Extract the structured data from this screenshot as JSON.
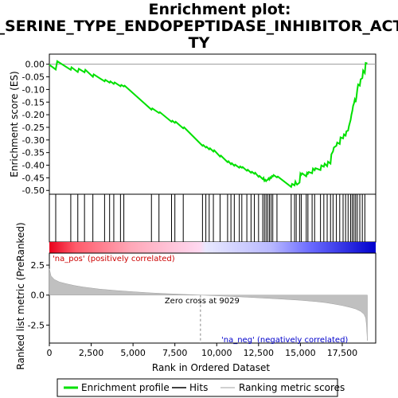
{
  "chart_data": {
    "type": "line",
    "title_lines": [
      "Enrichment plot:",
      "GO_SERINE_TYPE_ENDOPEPTIDASE_INHIBITOR_ACTIVI",
      "TY"
    ],
    "top_panel": {
      "ylabel": "Enrichment score (ES)",
      "ylim": [
        -0.515,
        0.04
      ],
      "yticks": [
        0.0,
        -0.05,
        -0.1,
        -0.15,
        -0.2,
        -0.25,
        -0.3,
        -0.35,
        -0.4,
        -0.45,
        -0.5
      ],
      "ytick_labels": [
        "0.00",
        "-0.05",
        "-0.10",
        "-0.15",
        "-0.20",
        "-0.25",
        "-0.30",
        "-0.35",
        "-0.40",
        "-0.45",
        "-0.50"
      ],
      "series": [
        {
          "name": "Enrichment profile",
          "color": "#00e000",
          "x": [
            0,
            380,
            470,
            1280,
            1320,
            1700,
            1760,
            2100,
            2150,
            2600,
            2650,
            3300,
            3350,
            3600,
            3650,
            3850,
            3900,
            4250,
            4300,
            4450,
            4500,
            6100,
            6150,
            6550,
            6600,
            7300,
            7350,
            7500,
            7550,
            8000,
            8050,
            9150,
            9200,
            9350,
            9400,
            9550,
            9600,
            9800,
            9850,
            10200,
            10250,
            10650,
            10700,
            10850,
            10900,
            11050,
            11100,
            11350,
            11400,
            11500,
            11550,
            11800,
            11850,
            12050,
            12100,
            12250,
            12300,
            12500,
            12550,
            12750,
            12800,
            12850,
            12900,
            12950,
            13000,
            13050,
            13100,
            13150,
            13200,
            13250,
            13300,
            13350,
            13400,
            13600,
            13650,
            14450,
            14500,
            14650,
            14700,
            14750,
            14800,
            14950,
            15000,
            15050,
            15100,
            15350,
            15400,
            15450,
            15500,
            15700,
            15750,
            15850,
            15900,
            16200,
            16250,
            16400,
            16450,
            16600,
            16650,
            16800,
            16850,
            16950,
            17000,
            17150,
            17200,
            17350,
            17400,
            17550,
            17600,
            17700,
            17750,
            17850,
            17900,
            18000,
            18050,
            18100,
            18150,
            18200,
            18250,
            18300,
            18350,
            18400,
            18450,
            18550,
            18600,
            18700,
            18750,
            18850,
            18900,
            19000
          ],
          "y": [
            -0.002,
            -0.021,
            0.012,
            -0.022,
            -0.012,
            -0.031,
            -0.018,
            -0.032,
            -0.022,
            -0.05,
            -0.04,
            -0.068,
            -0.062,
            -0.073,
            -0.068,
            -0.078,
            -0.072,
            -0.087,
            -0.082,
            -0.088,
            -0.085,
            -0.18,
            -0.175,
            -0.193,
            -0.19,
            -0.228,
            -0.224,
            -0.232,
            -0.228,
            -0.254,
            -0.25,
            -0.323,
            -0.32,
            -0.33,
            -0.327,
            -0.337,
            -0.333,
            -0.346,
            -0.341,
            -0.366,
            -0.362,
            -0.388,
            -0.384,
            -0.396,
            -0.392,
            -0.402,
            -0.398,
            -0.41,
            -0.405,
            -0.41,
            -0.407,
            -0.422,
            -0.418,
            -0.43,
            -0.426,
            -0.434,
            -0.43,
            -0.446,
            -0.442,
            -0.455,
            -0.45,
            -0.462,
            -0.458,
            -0.463,
            -0.459,
            -0.458,
            -0.452,
            -0.457,
            -0.448,
            -0.451,
            -0.443,
            -0.445,
            -0.439,
            -0.448,
            -0.445,
            -0.486,
            -0.474,
            -0.48,
            -0.465,
            -0.472,
            -0.477,
            -0.469,
            -0.433,
            -0.438,
            -0.432,
            -0.444,
            -0.43,
            -0.434,
            -0.427,
            -0.432,
            -0.413,
            -0.42,
            -0.412,
            -0.419,
            -0.401,
            -0.406,
            -0.394,
            -0.404,
            -0.386,
            -0.394,
            -0.357,
            -0.345,
            -0.33,
            -0.323,
            -0.31,
            -0.316,
            -0.29,
            -0.294,
            -0.278,
            -0.283,
            -0.266,
            -0.263,
            -0.245,
            -0.22,
            -0.2,
            -0.185,
            -0.165,
            -0.155,
            -0.14,
            -0.15,
            -0.13,
            -0.1,
            -0.08,
            -0.085,
            -0.06,
            -0.055,
            -0.025,
            -0.035,
            0.005,
            0.003
          ]
        }
      ]
    },
    "hits_panel": {
      "legend": "Hits",
      "hit_positions": [
        380,
        1280,
        1700,
        2100,
        2600,
        3300,
        3600,
        3850,
        4250,
        4450,
        6100,
        6550,
        7300,
        7500,
        8000,
        9150,
        9350,
        9550,
        9800,
        10200,
        10650,
        10850,
        11050,
        11350,
        11500,
        11800,
        12050,
        12250,
        12500,
        12750,
        12850,
        12950,
        13050,
        13150,
        13250,
        13350,
        13600,
        14450,
        14650,
        14750,
        14950,
        15050,
        15350,
        15450,
        15700,
        15850,
        16200,
        16400,
        16600,
        16800,
        16950,
        17150,
        17350,
        17550,
        17700,
        17850,
        18000,
        18100,
        18200,
        18300,
        18400,
        18550,
        18700,
        18850
      ]
    },
    "bottom_panel": {
      "ylabel": "Ranked list metric (PreRanked)",
      "xlabel": "Rank in Ordered Dataset",
      "xlim": [
        0,
        19500
      ],
      "ylim": [
        -4.0,
        3.5
      ],
      "xticks": [
        0,
        2500,
        5000,
        7500,
        10000,
        12500,
        15000,
        17500
      ],
      "xtick_labels": [
        "0",
        "2,500",
        "5,000",
        "7,500",
        "10,000",
        "12,500",
        "15,000",
        "17,500"
      ],
      "yticks": [
        2.5,
        0.0,
        -2.5
      ],
      "ytick_labels": [
        "2.5",
        "0.0",
        "-2.5"
      ],
      "metric_curve": {
        "name": "Ranking metric scores",
        "x": [
          0,
          100,
          300,
          600,
          1000,
          1500,
          2000,
          3000,
          4000,
          5000,
          6000,
          7000,
          8000,
          9029,
          10000,
          11000,
          12000,
          13000,
          14000,
          15000,
          16000,
          16500,
          17000,
          17500,
          18000,
          18300,
          18600,
          18800,
          18900,
          18950,
          19000
        ],
        "y": [
          2.2,
          1.6,
          1.3,
          1.1,
          0.95,
          0.8,
          0.68,
          0.5,
          0.38,
          0.28,
          0.19,
          0.12,
          0.06,
          0.0,
          -0.06,
          -0.12,
          -0.19,
          -0.26,
          -0.34,
          -0.43,
          -0.55,
          -0.63,
          -0.74,
          -0.87,
          -1.03,
          -1.15,
          -1.35,
          -1.6,
          -1.9,
          -2.5,
          -3.8
        ]
      },
      "zero_cross_rank": 9029,
      "zero_cross_label": "Zero cross at 9029",
      "pos_label": "'na_pos' (positively correlated)",
      "neg_label": "'na_neg' (negatively correlated)",
      "pos_color": "#cc0000",
      "neg_color": "#0000cc"
    },
    "legend": [
      {
        "label": "Enrichment profile",
        "color": "#00e000"
      },
      {
        "label": "Hits",
        "color": "#000000"
      },
      {
        "label": "Ranking metric scores",
        "color": "#c0c0c0"
      }
    ],
    "grid": false
  }
}
